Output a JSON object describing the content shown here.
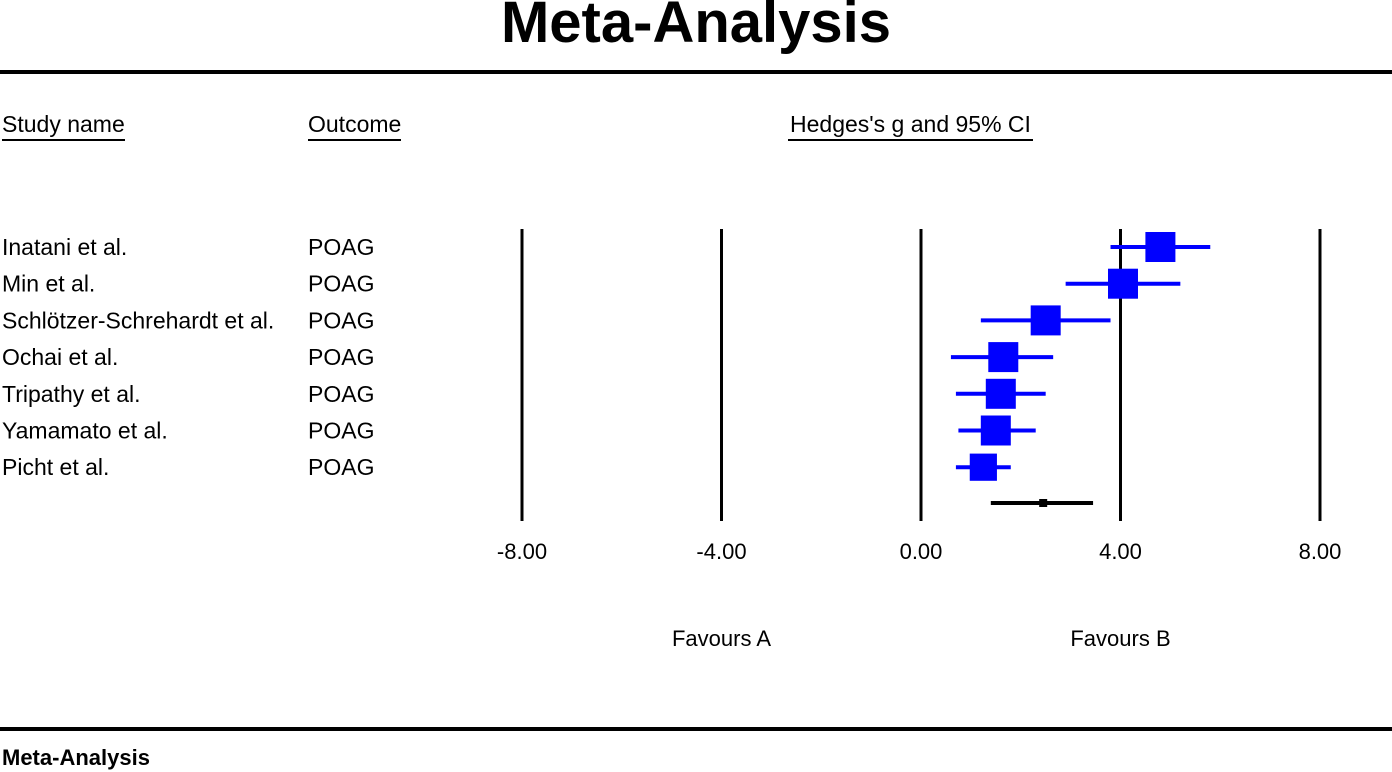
{
  "title": "Meta-Analysis",
  "footer": "Meta-Analysis",
  "columns": {
    "study_name": "Study name",
    "outcome": "Outcome",
    "effect": "Hedges's g and 95% CI"
  },
  "chart_data": {
    "type": "forest",
    "xlabel": "Hedges's g and 95% CI",
    "xlim": [
      -8,
      8
    ],
    "x_ticks": [
      "-8.00",
      "-4.00",
      "0.00",
      "4.00",
      "8.00"
    ],
    "x_tick_values": [
      -8,
      -4,
      0,
      4,
      8
    ],
    "favours_left": "Favours A",
    "favours_right": "Favours B",
    "studies": [
      {
        "name": "Inatani et al.",
        "outcome": "POAG",
        "g": 4.8,
        "lower": 3.8,
        "upper": 5.8,
        "weight": 1.0
      },
      {
        "name": "Min et al.",
        "outcome": "POAG",
        "g": 4.05,
        "lower": 2.9,
        "upper": 5.2,
        "weight": 1.0
      },
      {
        "name": "Schlötzer-Schrehardt et al.",
        "outcome": "POAG",
        "g": 2.5,
        "lower": 1.2,
        "upper": 3.8,
        "weight": 1.0
      },
      {
        "name": "Ochai et al.",
        "outcome": "POAG",
        "g": 1.65,
        "lower": 0.6,
        "upper": 2.65,
        "weight": 1.0
      },
      {
        "name": "Tripathy et al.",
        "outcome": "POAG",
        "g": 1.6,
        "lower": 0.7,
        "upper": 2.5,
        "weight": 1.0
      },
      {
        "name": "Yamamato et al.",
        "outcome": "POAG",
        "g": 1.5,
        "lower": 0.75,
        "upper": 2.3,
        "weight": 1.0
      },
      {
        "name": "Picht et al.",
        "outcome": "POAG",
        "g": 1.25,
        "lower": 0.7,
        "upper": 1.8,
        "weight": 0.9
      }
    ],
    "summary": {
      "g": 2.45,
      "lower": 1.4,
      "upper": 3.45
    },
    "colors": {
      "study": "#0000ff",
      "summary": "#000000",
      "axis": "#000000"
    }
  }
}
